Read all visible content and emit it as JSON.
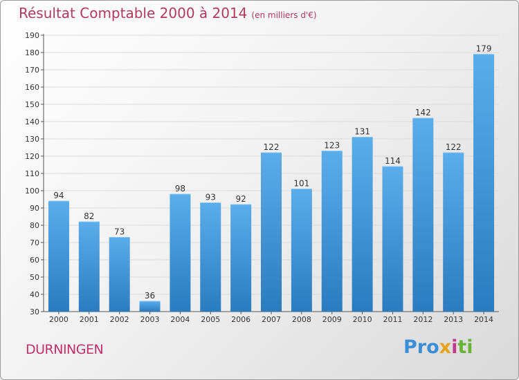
{
  "header": {
    "title": "Résultat Comptable 2000 à 2014",
    "unit": "(en milliers d'€)"
  },
  "footer": {
    "place": "DURNINGEN",
    "logo_parts": [
      "Pro",
      "x",
      "i",
      "ti"
    ]
  },
  "colors": {
    "bar_top": "#5aacea",
    "bar_bottom": "#2a7cc0",
    "title": "#b03a5b",
    "place": "#c0306a"
  },
  "chart_data": {
    "type": "bar",
    "title": "Résultat Comptable 2000 à 2014",
    "subtitle": "(en milliers d'€)",
    "xlabel": "",
    "ylabel": "",
    "categories": [
      "2000",
      "2001",
      "2002",
      "2003",
      "2004",
      "2005",
      "2006",
      "2007",
      "2008",
      "2009",
      "2010",
      "2011",
      "2012",
      "2013",
      "2014"
    ],
    "values": [
      94,
      82,
      73,
      36,
      98,
      93,
      92,
      122,
      101,
      123,
      131,
      114,
      142,
      122,
      179
    ],
    "ylim": [
      30,
      190
    ],
    "yticks": [
      30,
      40,
      50,
      60,
      70,
      80,
      90,
      100,
      110,
      120,
      130,
      140,
      150,
      160,
      170,
      180,
      190
    ],
    "grid": true,
    "legend": "none"
  }
}
